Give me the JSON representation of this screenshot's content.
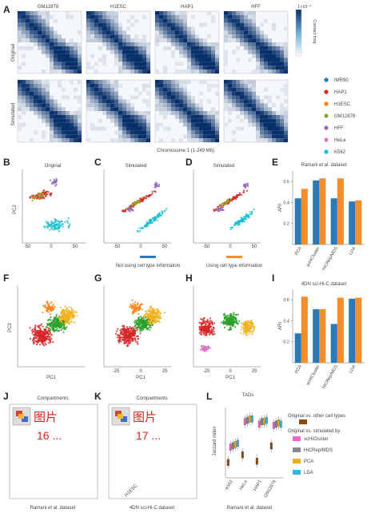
{
  "panels": {
    "A": "A",
    "B": "B",
    "C": "C",
    "D": "D",
    "E": "E",
    "F": "F",
    "G": "G",
    "H": "H",
    "I": "I",
    "J": "J",
    "K": "K",
    "L": "L"
  },
  "heatmaps": {
    "columns": [
      "GM12878",
      "H1ESC",
      "HAP1",
      "HFF"
    ],
    "rows": [
      "Original",
      "Simulated"
    ],
    "xlabel": "Chromosome 1 (1-249 Mb)",
    "colorbar_title": "1×10⁻⁴",
    "colorbar_label": "Contact freq.",
    "colors": {
      "low": "#ffffff",
      "high": "#08306b"
    }
  },
  "legend_a": {
    "items": [
      {
        "label": "IMR90",
        "color": "#1f77b4"
      },
      {
        "label": "HAP1",
        "color": "#d62728"
      },
      {
        "label": "H1ESC",
        "color": "#ff7f0e"
      },
      {
        "label": "GM12878",
        "color": "#9aa326"
      },
      {
        "label": "HFF",
        "color": "#9467bd"
      },
      {
        "label": "HeLa",
        "color": "#e377c2"
      },
      {
        "label": "K562",
        "color": "#17becf"
      }
    ]
  },
  "scatter_bcd": {
    "titles": [
      "Original",
      "Simulated",
      "Simulated"
    ],
    "ylabel": "PC2",
    "xticks": [
      "-50",
      "0",
      "50"
    ],
    "cluster_colors": [
      "#d62728",
      "#a0a020",
      "#9467bd",
      "#17becf",
      "#e377c2"
    ]
  },
  "bar_e": {
    "title": "Ramani et al. dataset",
    "ylabel": "ARI",
    "yticks": [
      "0.2",
      "0.4",
      "0.6"
    ]
  },
  "bar_legend": {
    "not_using": "Not using cell type information",
    "using": "Using cell type information",
    "not_color": "#2a7ab8",
    "using_color": "#f28e2b"
  },
  "scatter_fgh": {
    "xlabel": "PC1",
    "ylabel": "PC2",
    "g_xticks": [
      "-25",
      "0",
      "25"
    ],
    "h_xticks": [
      "-25",
      "0",
      "25"
    ],
    "colors": [
      "#d62728",
      "#2ca02c",
      "#f2b01e",
      "#ff7f0e",
      "#e377c2"
    ]
  },
  "bar_i": {
    "title": "4DN sci-Hi-C dataset",
    "ylabel": "ARI",
    "yticks": [
      "0.2",
      "0.4",
      "0.6"
    ]
  },
  "compartments": {
    "j_title": "Compartments",
    "k_title": "Compartments",
    "j_placeholder_text": "图片",
    "j_placeholder_num": "16 ...",
    "k_placeholder_text": "图片",
    "k_placeholder_num": "17 ...",
    "j_footer": "Ramani et al. dataset",
    "k_footer": "4DN sci-Hi-C dataset",
    "k_axis": "H1ESC"
  },
  "tads": {
    "title": "TADs",
    "ylabel": "Jaccard index",
    "categories": [
      "K562",
      "HeLa",
      "HAP1",
      "GM12878"
    ],
    "footer": "Ramani et al. dataset",
    "legend": {
      "orig_vs_other": "Original vs. other cell types",
      "orig_vs_sim": "Original vs. simulated by",
      "methods": [
        "scHiCluster",
        "HiCRep/MDS",
        "PCA",
        "LDA"
      ],
      "orig_color": "#8c4a12",
      "method_colors": [
        "#ee66cc",
        "#888888",
        "#e6b21a",
        "#2fb7e8"
      ]
    }
  },
  "chart_data": [
    {
      "type": "bar",
      "title": "Ramani et al. dataset",
      "categories": [
        "PCA",
        "scHiCluster",
        "HiCRep/MDS",
        "LDA"
      ],
      "ylabel": "ARI",
      "ylim": [
        0,
        0.7
      ],
      "series": [
        {
          "name": "Not using cell type information",
          "values": [
            0.44,
            0.61,
            0.44,
            0.41
          ]
        },
        {
          "name": "Using cell type information",
          "values": [
            0.53,
            0.63,
            0.63,
            0.42
          ]
        }
      ]
    },
    {
      "type": "bar",
      "title": "4DN sci-Hi-C dataset",
      "categories": [
        "PCA",
        "scHiCluster",
        "HiCRep/MDS",
        "LDA"
      ],
      "ylabel": "ARI",
      "ylim": [
        0,
        0.7
      ],
      "series": [
        {
          "name": "Not using cell type information",
          "values": [
            0.28,
            0.51,
            0.37,
            0.61
          ]
        },
        {
          "name": "Using cell type information",
          "values": [
            0.63,
            0.51,
            0.62,
            0.62
          ]
        }
      ]
    },
    {
      "type": "box",
      "title": "TADs",
      "categories": [
        "K562",
        "HeLa",
        "HAP1",
        "GM12878"
      ],
      "ylabel": "Jaccard index",
      "series": [
        {
          "name": "Original vs. other cell types",
          "values": [
            0.32,
            0.38,
            0.33,
            0.45
          ]
        },
        {
          "name": "scHiCluster",
          "values": [
            0.44,
            0.64,
            0.62,
            0.61
          ]
        },
        {
          "name": "HiCRep/MDS",
          "values": [
            0.45,
            0.65,
            0.64,
            0.62
          ]
        },
        {
          "name": "PCA",
          "values": [
            0.46,
            0.66,
            0.64,
            0.63
          ]
        },
        {
          "name": "LDA",
          "values": [
            0.47,
            0.66,
            0.65,
            0.62
          ]
        }
      ]
    }
  ]
}
